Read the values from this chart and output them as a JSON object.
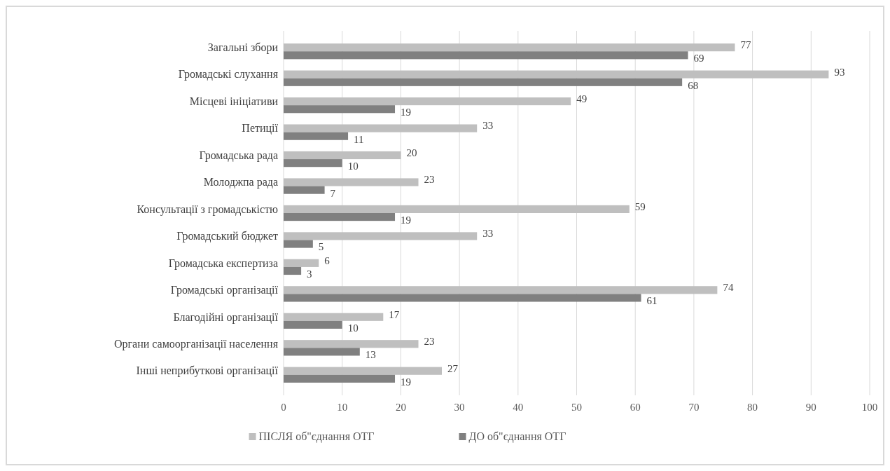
{
  "chart_data": {
    "type": "bar",
    "orientation": "horizontal",
    "categories": [
      "Загальні збори",
      "Громадські слухання",
      "Місцеві ініціативи",
      "Петиції",
      "Громадська рада",
      "Молоджпа рада",
      "Консультації з громадськістю",
      "Громадський бюджет",
      "Громадська експертиза",
      "Громадські організації",
      "Благодійні організації",
      "Органи самоорганізації населення",
      "Інші неприбуткові організації"
    ],
    "series": [
      {
        "name": "ПІСЛЯ об\"єднання ОТГ",
        "color": "#bfbfbf",
        "values": [
          77,
          93,
          49,
          33,
          20,
          23,
          59,
          33,
          6,
          74,
          17,
          23,
          27
        ]
      },
      {
        "name": "ДО об\"єднання ОТГ",
        "color": "#808080",
        "values": [
          69,
          68,
          19,
          11,
          10,
          7,
          19,
          5,
          3,
          61,
          10,
          13,
          19
        ]
      }
    ],
    "xlim": [
      0,
      100
    ],
    "xticks": [
      0,
      10,
      20,
      30,
      40,
      50,
      60,
      70,
      80,
      90,
      100
    ],
    "grid": "x",
    "legend": "bottom",
    "data_labels": true
  }
}
